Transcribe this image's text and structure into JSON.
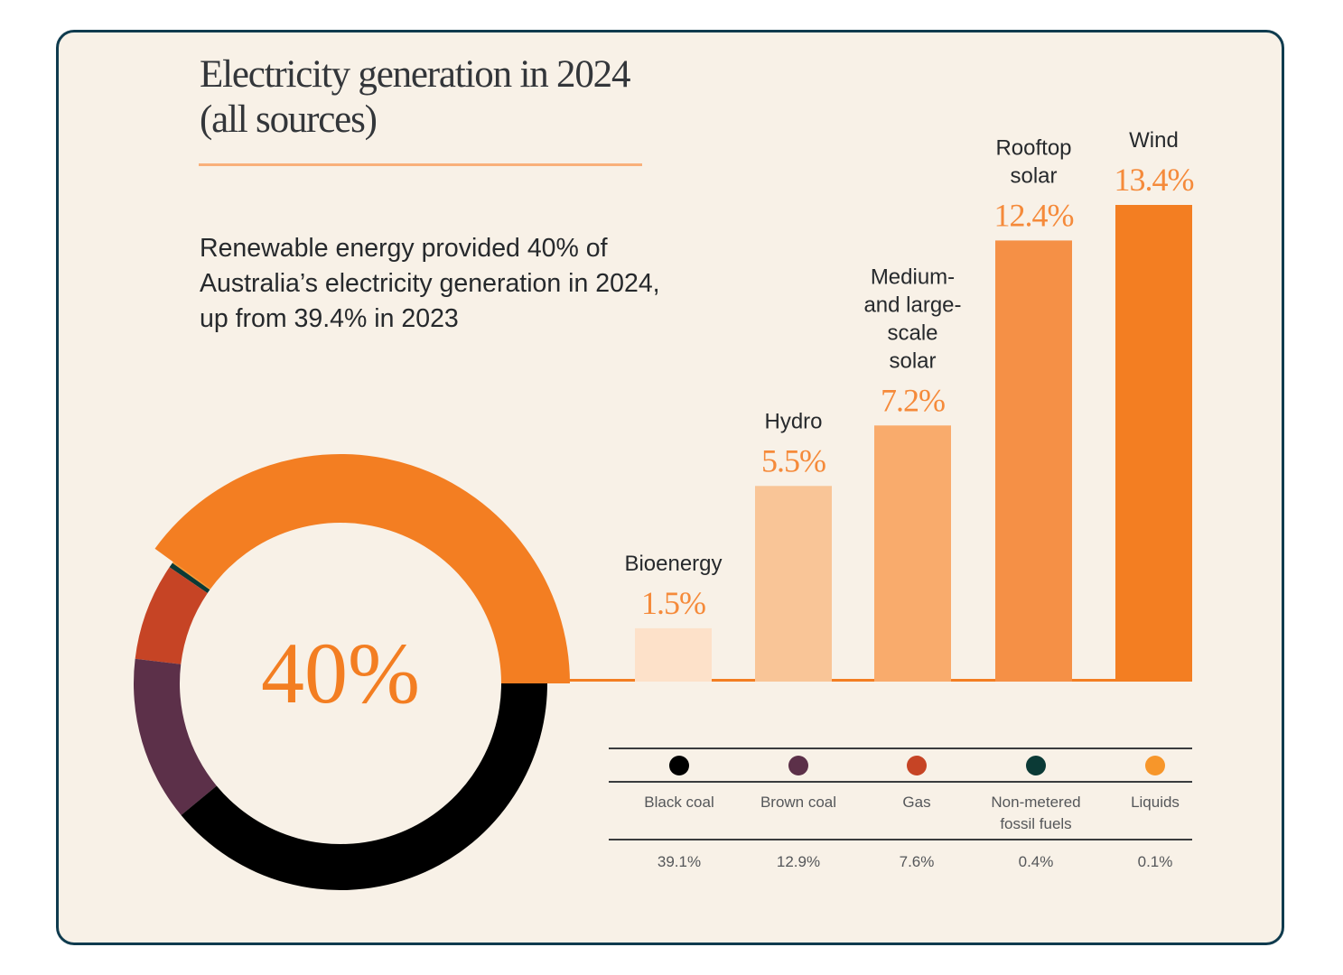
{
  "title_lines": [
    "Electricity generation in 2024",
    "(all sources)"
  ],
  "subtitle": "Renewable energy provided 40% of Australia’s electricity generation in 2024, up from 39.4% in 2023",
  "chart_data": [
    {
      "type": "pie",
      "variant": "donut",
      "center_label": "40%",
      "slices": [
        {
          "name": "Renewable",
          "value": 40,
          "color": "#f37e22"
        },
        {
          "name": "Liquids",
          "value": 0.1,
          "color": "#f7962a"
        },
        {
          "name": "Non-metered fossil fuels",
          "value": 0.4,
          "color": "#0b3a36"
        },
        {
          "name": "Gas",
          "value": 7.6,
          "color": "#c64425"
        },
        {
          "name": "Brown coal",
          "value": 12.9,
          "color": "#5c3049"
        },
        {
          "name": "Black coal",
          "value": 39.1,
          "color": "#000000"
        }
      ]
    },
    {
      "type": "bar",
      "categories": [
        {
          "label_lines": [
            "Bioenergy"
          ],
          "value": 1.5,
          "value_label": "1.5%",
          "color": "#fde1c9"
        },
        {
          "label_lines": [
            "Hydro"
          ],
          "value": 5.5,
          "value_label": "5.5%",
          "color": "#f9c597"
        },
        {
          "label_lines": [
            "Medium-",
            "and large-",
            "scale",
            "solar"
          ],
          "value": 7.2,
          "value_label": "7.2%",
          "color": "#f9ab6c"
        },
        {
          "label_lines": [
            "Rooftop",
            "solar"
          ],
          "value": 12.4,
          "value_label": "12.4%",
          "color": "#f59046"
        },
        {
          "label_lines": [
            "Wind"
          ],
          "value": 13.4,
          "value_label": "13.4%",
          "color": "#f37e22"
        }
      ],
      "ylim": [
        0,
        13.4
      ]
    }
  ],
  "legend": {
    "items": [
      {
        "name_lines": [
          "Black coal"
        ],
        "value": "39.1%",
        "color": "#000000"
      },
      {
        "name_lines": [
          "Brown coal"
        ],
        "value": "12.9%",
        "color": "#5c3049"
      },
      {
        "name_lines": [
          "Gas"
        ],
        "value": "7.6%",
        "color": "#c64425"
      },
      {
        "name_lines": [
          "Non-metered",
          "fossil fuels"
        ],
        "value": "0.4%",
        "color": "#0b3a36"
      },
      {
        "name_lines": [
          "Liquids"
        ],
        "value": "0.1%",
        "color": "#f7962a"
      }
    ]
  }
}
